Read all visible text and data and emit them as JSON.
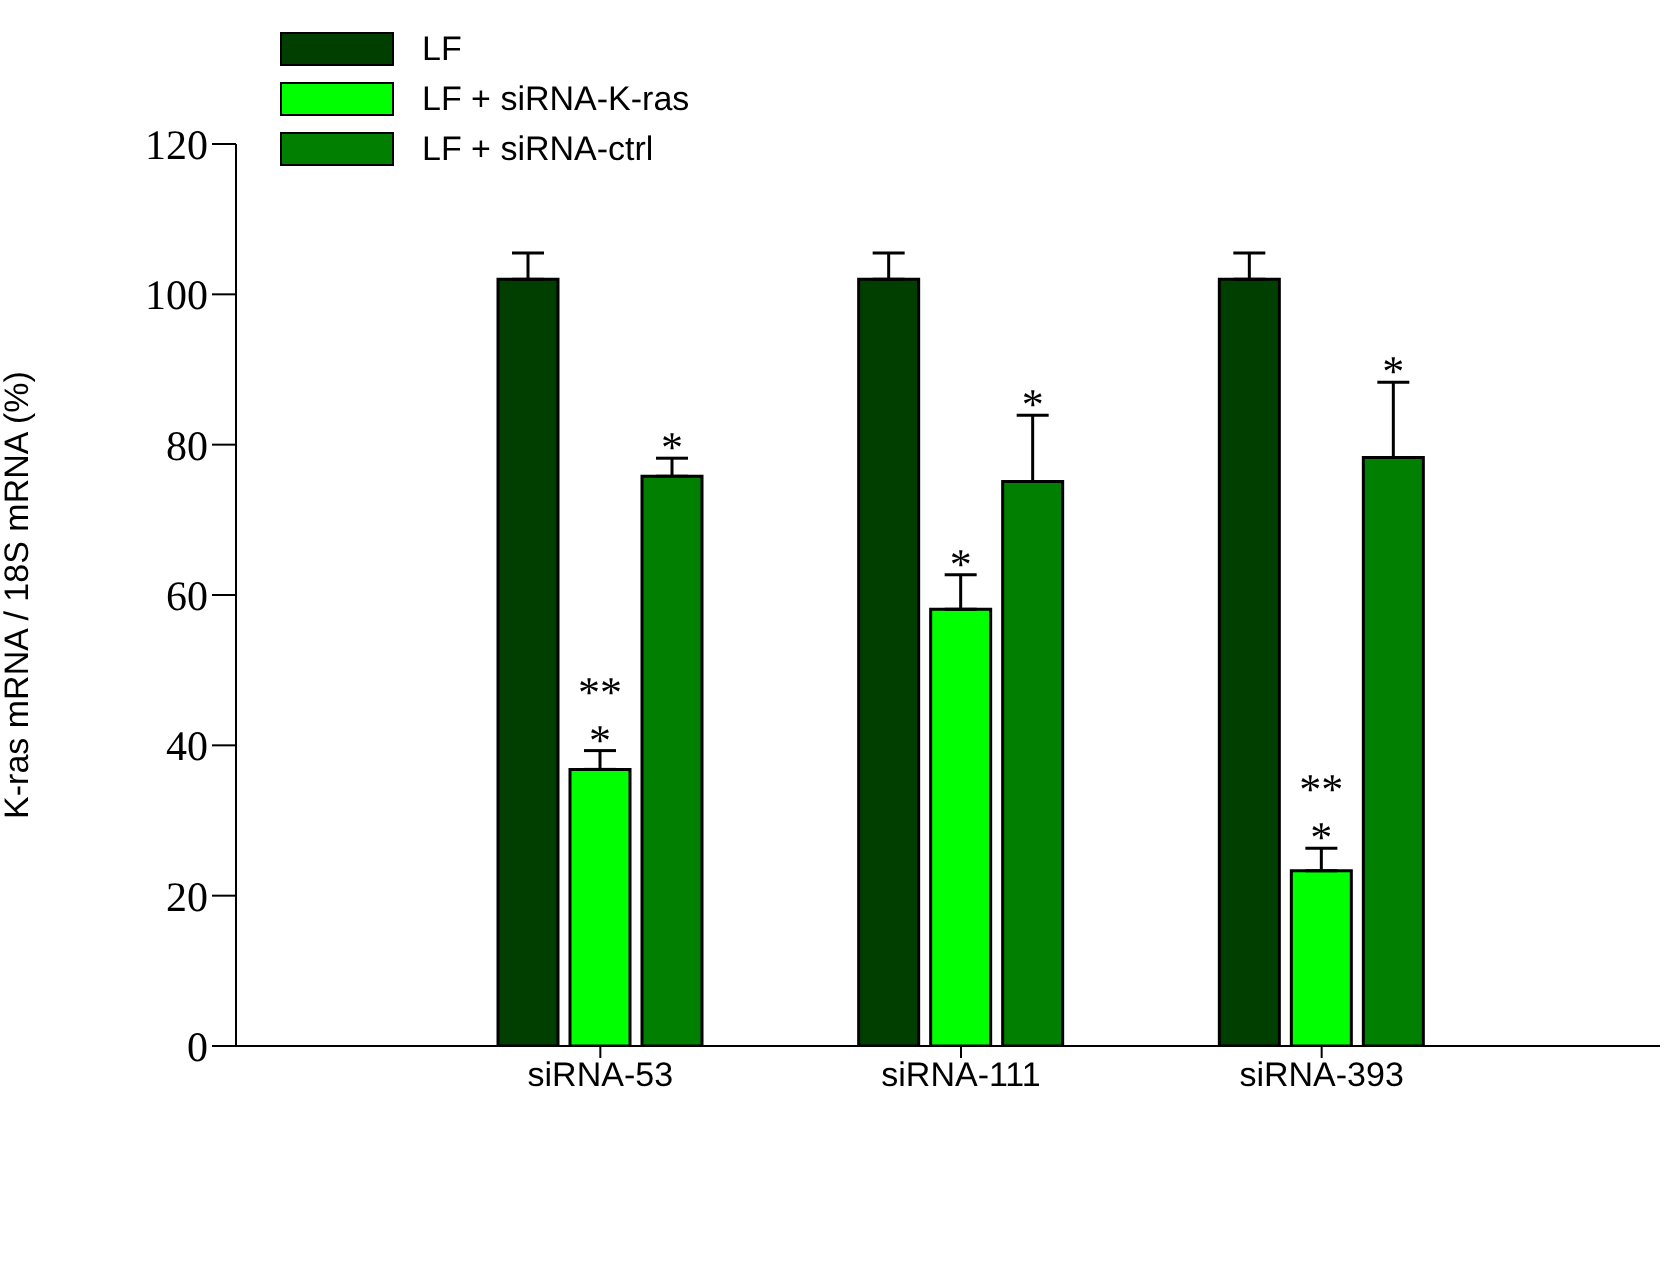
{
  "chart_data": {
    "type": "bar",
    "ylabel": "K-ras mRNA / 18S mRNA (%)",
    "categories": [
      "siRNA-53",
      "siRNA-111",
      "siRNA-393"
    ],
    "series": [
      {
        "name": "LF",
        "color": "#003f00",
        "values": [
          102,
          102,
          102
        ],
        "errors": [
          3.5,
          3.5,
          3.5
        ],
        "value_labels": [
          null,
          null,
          null
        ]
      },
      {
        "name": "LF + siRNA-K-ras",
        "color": "#00ff00",
        "values": [
          36.8,
          58.1,
          23.3
        ],
        "errors": [
          2.5,
          4.6,
          3
        ],
        "value_labels": [
          "**\n*",
          "*",
          "**\n*"
        ]
      },
      {
        "name": "LF + siRNA-ctrl",
        "color": "#007f00",
        "values": [
          75.8,
          75.1,
          78.3
        ],
        "errors": [
          2.4,
          8.8,
          10
        ],
        "value_labels": [
          "*",
          "*",
          "*"
        ]
      }
    ],
    "ylim": [
      0,
      120
    ],
    "yticks": [
      0,
      20,
      40,
      60,
      80,
      100,
      120
    ],
    "grid": false,
    "legend": "top left"
  }
}
